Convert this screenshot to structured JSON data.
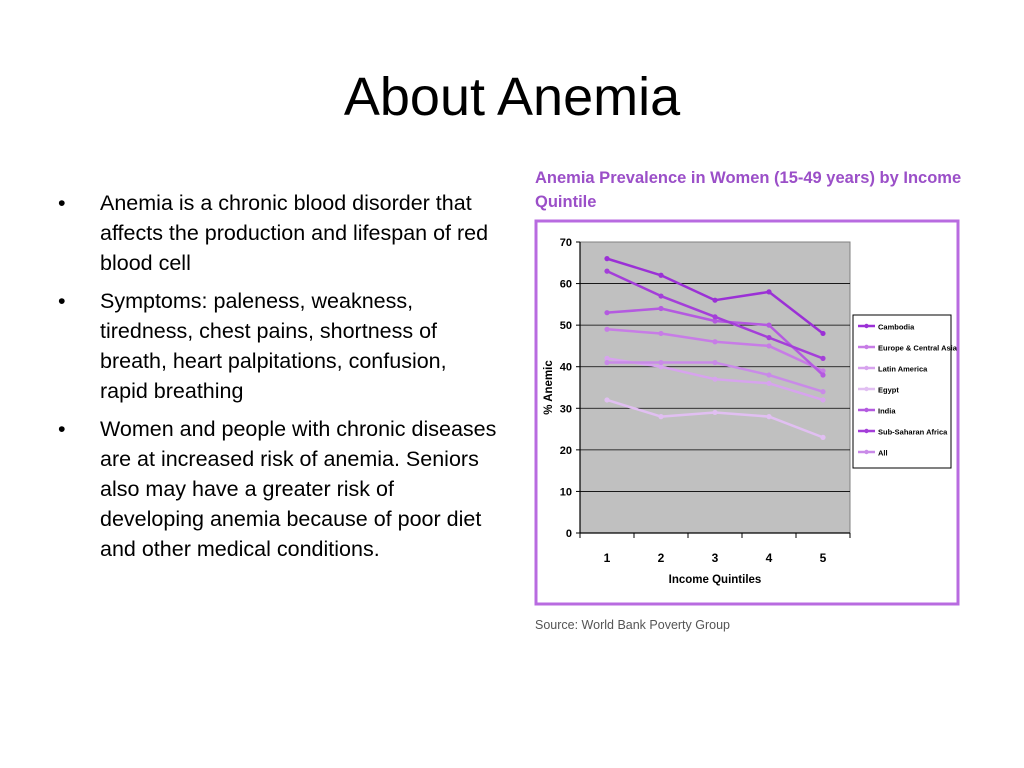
{
  "slide": {
    "title": "About Anemia",
    "bullets": [
      "Anemia is a chronic blood disorder that affects the production and lifespan of red blood cell",
      "Symptoms: paleness, weakness, tiredness, chest pains, shortness of breath, heart palpitations, confusion, rapid breathing",
      "Women and people with chronic diseases are at increased risk of anemia. Seniors also may have a greater risk of developing anemia because of poor diet and other medical conditions."
    ],
    "bullet_glyph": "•"
  },
  "chart_data": {
    "type": "line",
    "title": "Anemia Prevalence in Women (15-49 years) by Income Quintile",
    "xlabel": "Income Quintiles",
    "ylabel": "% Anemic",
    "x": [
      1,
      2,
      3,
      4,
      5
    ],
    "ylim": [
      0,
      70
    ],
    "yticks": [
      0,
      10,
      20,
      30,
      40,
      50,
      60,
      70
    ],
    "grid": true,
    "legend_position": "right",
    "series": [
      {
        "name": "Cambodia",
        "values": [
          66,
          62,
          56,
          58,
          48
        ],
        "color": "#9b30d6"
      },
      {
        "name": "Europe & Central Asia",
        "values": [
          49,
          48,
          46,
          45,
          39
        ],
        "color": "#c77ce6"
      },
      {
        "name": "Latin America",
        "values": [
          42,
          40,
          37,
          36,
          32
        ],
        "color": "#d7a3ee"
      },
      {
        "name": "Egypt",
        "values": [
          32,
          28,
          29,
          28,
          23
        ],
        "color": "#e1bff2"
      },
      {
        "name": "India",
        "values": [
          53,
          54,
          51,
          50,
          38
        ],
        "color": "#b45ae0"
      },
      {
        "name": "Sub-Saharan Africa",
        "values": [
          63,
          57,
          52,
          47,
          42
        ],
        "color": "#a43ed9"
      },
      {
        "name": "All",
        "values": [
          41,
          41,
          41,
          38,
          34
        ],
        "color": "#c98ae8"
      }
    ],
    "source": "Source: World Bank Poverty Group",
    "colors": {
      "frame": "#b86be0",
      "plot_background": "#c0c0c0",
      "gridline": "#000000"
    }
  }
}
